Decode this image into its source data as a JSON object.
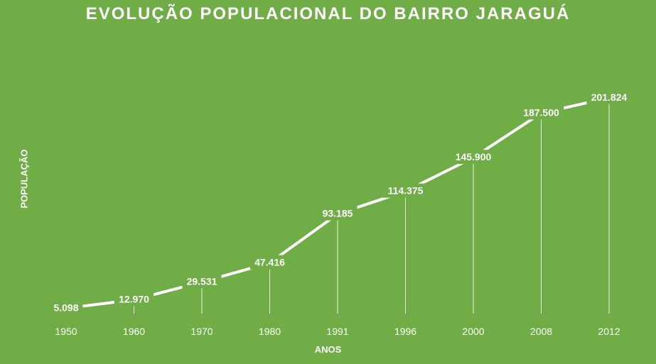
{
  "chart_data": {
    "type": "line",
    "title": "EVOLUÇÃO POPULACIONAL DO BAIRRO JARAGUÁ",
    "xlabel": "ANOS",
    "ylabel": "POPULAÇÃO",
    "categories": [
      "1950",
      "1960",
      "1970",
      "1980",
      "1991",
      "1996",
      "2000",
      "2008",
      "2012"
    ],
    "values": [
      5098,
      12970,
      29531,
      47416,
      93185,
      114375,
      145900,
      187500,
      201824
    ],
    "data_labels": [
      "5.098",
      "12.970",
      "29.531",
      "47.416",
      "93.185",
      "114.375",
      "145.900",
      "187.500",
      "201.824"
    ],
    "ylim": [
      0,
      215000
    ],
    "grid": false,
    "drop_lines": true,
    "colors": {
      "background": "#70AD47",
      "line": "#FFFFFF",
      "text": "#FFFFFF"
    }
  }
}
